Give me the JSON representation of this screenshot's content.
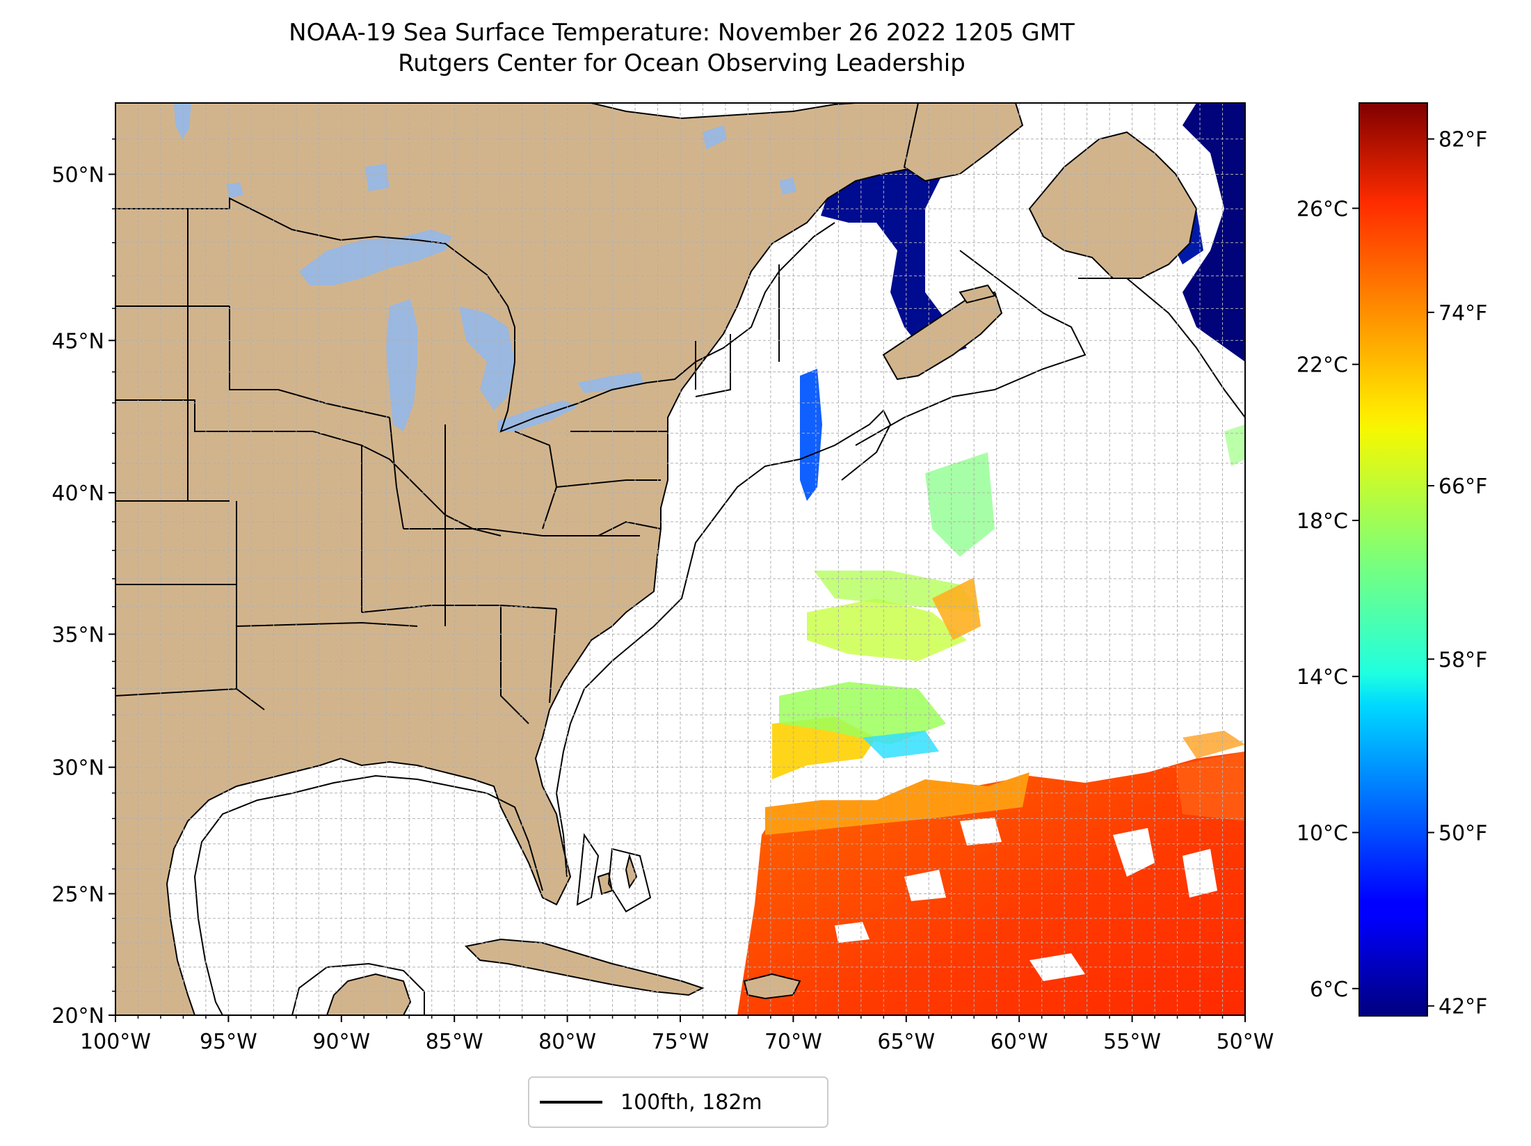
{
  "header": {
    "title": "NOAA-19 Sea Surface Temperature: November 26 2022 1205 GMT",
    "subtitle": "Rutgers Center for Ocean Observing Leadership"
  },
  "map": {
    "lon_range": [
      -100,
      -50
    ],
    "lat_range": [
      20,
      52
    ],
    "lon_ticks": [
      "100°W",
      "95°W",
      "90°W",
      "85°W",
      "80°W",
      "75°W",
      "70°W",
      "65°W",
      "60°W",
      "55°W",
      "50°W"
    ],
    "lat_ticks": [
      "20°N",
      "25°N",
      "30°N",
      "35°N",
      "40°N",
      "45°N",
      "50°N"
    ],
    "gridlines": true,
    "land_color": "#d2b48c",
    "lake_color": "#9ab8e0",
    "isobath_color": "#000000"
  },
  "legend": {
    "label": "100fth, 182m",
    "placement": "bottom-center"
  },
  "colorbar": {
    "colormap": "jet",
    "celsius_range": [
      5.3,
      28.7
    ],
    "celsius_ticks": [
      "6°C",
      "10°C",
      "14°C",
      "18°C",
      "22°C",
      "26°C"
    ],
    "celsius_values": [
      6,
      10,
      14,
      18,
      22,
      26
    ],
    "fahrenheit_ticks": [
      "42°F",
      "50°F",
      "58°F",
      "66°F",
      "74°F",
      "82°F"
    ],
    "fahrenheit_values": [
      42,
      50,
      58,
      66,
      74,
      82
    ]
  }
}
